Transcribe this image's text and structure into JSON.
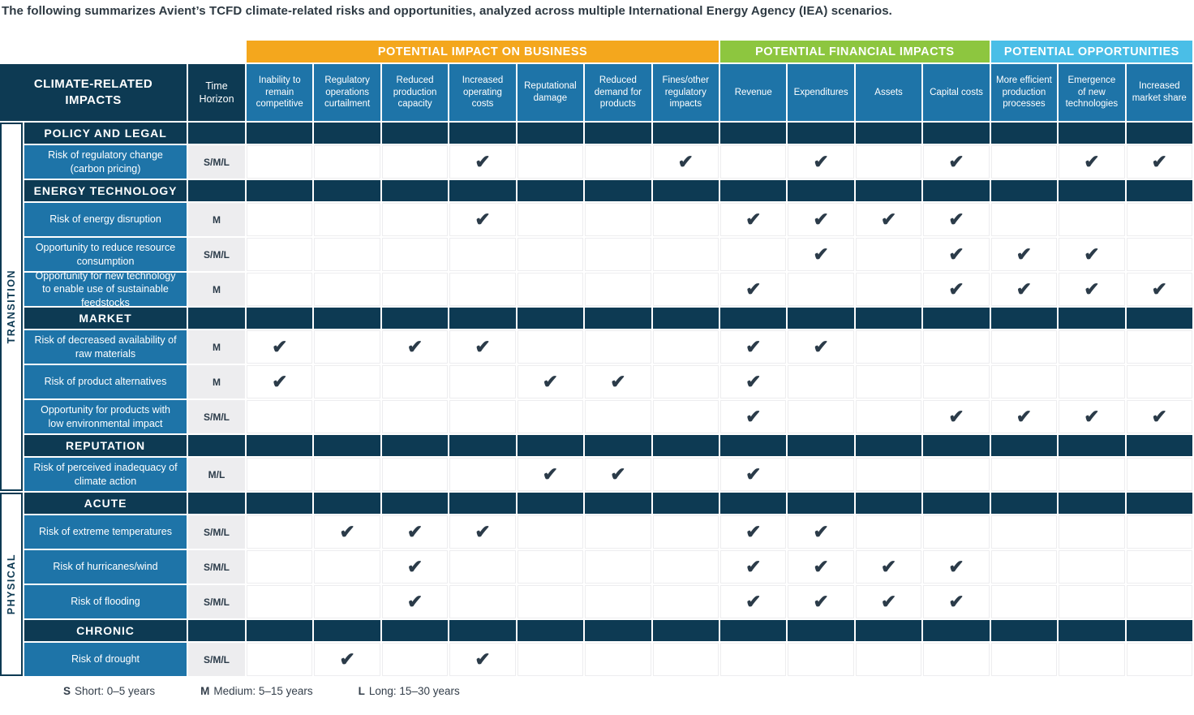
{
  "intro": "The following summarizes Avient’s TCFD climate-related risks and opportunities, analyzed across multiple International Energy Agency (IEA) scenarios.",
  "colors": {
    "navy": "#0d3a53",
    "blue": "#1e74a8",
    "orange": "#f4a71d",
    "green": "#8dc63f",
    "cyan": "#4abee7",
    "check": "#2b3b49",
    "timebg": "#ededef"
  },
  "chart_data": {
    "type": "table",
    "corner_header": "CLIMATE-RELATED IMPACTS",
    "time_header": "Time Horizon",
    "groups": [
      {
        "label": "POTENTIAL IMPACT ON BUSINESS",
        "color": "#f4a71d",
        "span": 7
      },
      {
        "label": "POTENTIAL FINANCIAL IMPACTS",
        "color": "#8dc63f",
        "span": 4
      },
      {
        "label": "POTENTIAL OPPORTUNITIES",
        "color": "#4abee7",
        "span": 3
      }
    ],
    "columns": [
      "Inability to remain competitive",
      "Regulatory operations curtailment",
      "Reduced production capacity",
      "Increased operating costs",
      "Reputational damage",
      "Reduced demand for products",
      "Fines/other regulatory impacts",
      "Revenue",
      "Expenditures",
      "Assets",
      "Capital costs",
      "More efficient production processes",
      "Emergence of new technologies",
      "Increased market share"
    ],
    "check_symbol": "✔",
    "row_groups": [
      {
        "label": "TRANSITION",
        "rows": [
          {
            "type": "section",
            "label": "POLICY AND LEGAL"
          },
          {
            "type": "risk",
            "label": "Risk of regulatory change (carbon pricing)",
            "time": "S/M/L",
            "checks": [
              4,
              7,
              9,
              11,
              13,
              14
            ]
          },
          {
            "type": "section",
            "label": "ENERGY TECHNOLOGY"
          },
          {
            "type": "risk",
            "label": "Risk of energy disruption",
            "time": "M",
            "checks": [
              4,
              8,
              9,
              10,
              11
            ]
          },
          {
            "type": "risk",
            "label": "Opportunity to reduce resource consumption",
            "time": "S/M/L",
            "checks": [
              9,
              11,
              12,
              13
            ]
          },
          {
            "type": "risk",
            "label": "Opportunity for new technology to enable use of sustainable feedstocks",
            "time": "M",
            "checks": [
              8,
              11,
              12,
              13,
              14
            ]
          },
          {
            "type": "section",
            "label": "MARKET"
          },
          {
            "type": "risk",
            "label": "Risk of decreased availability of raw materials",
            "time": "M",
            "checks": [
              1,
              3,
              4,
              8,
              9
            ]
          },
          {
            "type": "risk",
            "label": "Risk of product alternatives",
            "time": "M",
            "checks": [
              1,
              5,
              6,
              8
            ]
          },
          {
            "type": "risk",
            "label": "Opportunity for products with low environmental impact",
            "time": "S/M/L",
            "checks": [
              8,
              11,
              12,
              13,
              14
            ]
          },
          {
            "type": "section",
            "label": "REPUTATION"
          },
          {
            "type": "risk",
            "label": "Risk of perceived inadequacy of climate action",
            "time": "M/L",
            "checks": [
              5,
              6,
              8
            ]
          }
        ]
      },
      {
        "label": "PHYSICAL",
        "rows": [
          {
            "type": "section",
            "label": "ACUTE"
          },
          {
            "type": "risk",
            "label": "Risk of extreme temperatures",
            "time": "S/M/L",
            "checks": [
              2,
              3,
              4,
              8,
              9
            ]
          },
          {
            "type": "risk",
            "label": "Risk of hurricanes/wind",
            "time": "S/M/L",
            "checks": [
              3,
              8,
              9,
              10,
              11
            ]
          },
          {
            "type": "risk",
            "label": "Risk of flooding",
            "time": "S/M/L",
            "checks": [
              3,
              8,
              9,
              10,
              11
            ]
          },
          {
            "type": "section",
            "label": "CHRONIC"
          },
          {
            "type": "risk",
            "label": "Risk of drought",
            "time": "S/M/L",
            "checks": [
              2,
              4
            ]
          }
        ]
      }
    ]
  },
  "legend": [
    {
      "key": "S",
      "text": "Short: 0–5 years"
    },
    {
      "key": "M",
      "text": "Medium: 5–15 years"
    },
    {
      "key": "L",
      "text": "Long: 15–30 years"
    }
  ]
}
